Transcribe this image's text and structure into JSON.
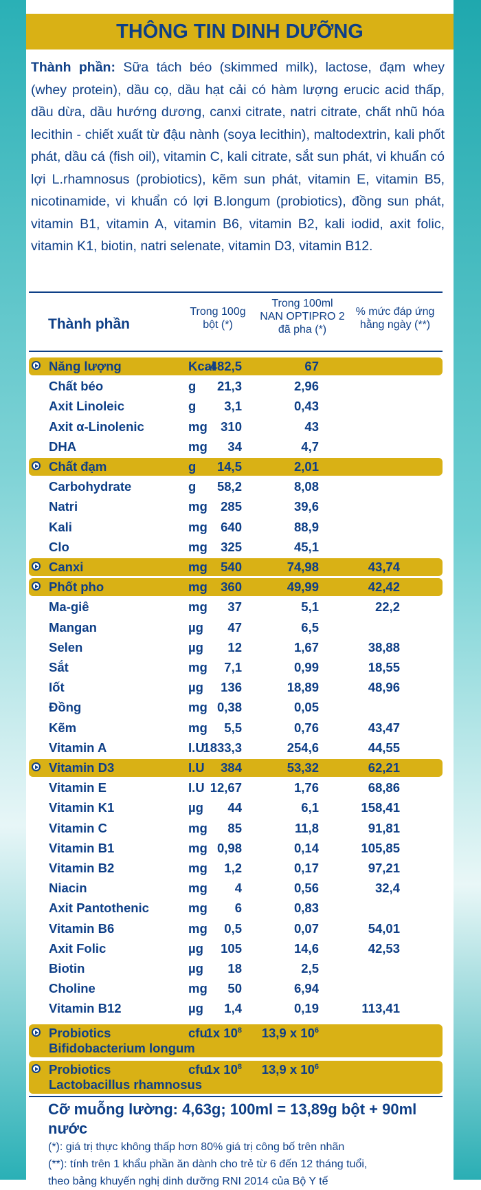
{
  "title": "THÔNG TIN DINH DƯỠNG",
  "ingredients": {
    "label": "Thành phần:",
    "text": "Sữa tách béo (skimmed milk), lactose, đạm whey (whey protein), dầu cọ, dầu hạt cải có hàm lượng erucic acid thấp, dầu dừa, dầu hướng dương, canxi citrate, natri citrate, chất nhũ hóa lecithin - chiết xuất từ đậu nành (soya lecithin), maltodextrin, kali phốt phát, dầu cá (fish oil), vitamin C, kali citrate, sắt sun phát, vi khuẩn có lợi L.rhamnosus (probiotics), kẽm sun phát, vitamin E, vitamin B5, nicotinamide, vi khuẩn có lợi B.longum (probiotics), đồng sun phát, vitamin B1, vitamin A, vitamin B6, vitamin B2, kali iodid, axit folic, vitamin K1, biotin, natri selenate, vitamin D3, vitamin B12."
  },
  "table_header": {
    "name": "Thành phần",
    "col_100g_line1": "Trong 100g",
    "col_100g_line2": "bột (*)",
    "col_100ml_line1": "Trong 100ml",
    "col_100ml_line2": "NAN OPTIPRO 2",
    "col_100ml_line3": "đã pha (*)",
    "col_pct_line1": "% mức đáp ứng",
    "col_pct_line2": "hằng ngày (**)"
  },
  "rows": [
    {
      "name": "Năng lượng",
      "unit": "Kcal",
      "v100g": "482,5",
      "v100ml": "67",
      "pct": ""
    },
    {
      "name": "Chất béo",
      "unit": "g",
      "v100g": "21,3",
      "v100ml": "2,96",
      "pct": ""
    },
    {
      "name": "Axit Linoleic",
      "unit": "g",
      "v100g": "3,1",
      "v100ml": "0,43",
      "pct": ""
    },
    {
      "name": "Axit α-Linolenic",
      "unit": "mg",
      "v100g": "310",
      "v100ml": "43",
      "pct": ""
    },
    {
      "name": "DHA",
      "unit": "mg",
      "v100g": "34",
      "v100ml": "4,7",
      "pct": ""
    },
    {
      "name": "Chất đạm",
      "unit": "g",
      "v100g": "14,5",
      "v100ml": "2,01",
      "pct": ""
    },
    {
      "name": "Carbohydrate",
      "unit": "g",
      "v100g": "58,2",
      "v100ml": "8,08",
      "pct": ""
    },
    {
      "name": "Natri",
      "unit": "mg",
      "v100g": "285",
      "v100ml": "39,6",
      "pct": ""
    },
    {
      "name": "Kali",
      "unit": "mg",
      "v100g": "640",
      "v100ml": "88,9",
      "pct": ""
    },
    {
      "name": "Clo",
      "unit": "mg",
      "v100g": "325",
      "v100ml": "45,1",
      "pct": ""
    },
    {
      "name": "Canxi",
      "unit": "mg",
      "v100g": "540",
      "v100ml": "74,98",
      "pct": "43,74"
    },
    {
      "name": "Phốt pho",
      "unit": "mg",
      "v100g": "360",
      "v100ml": "49,99",
      "pct": "42,42"
    },
    {
      "name": "Ma-giê",
      "unit": "mg",
      "v100g": "37",
      "v100ml": "5,1",
      "pct": "22,2"
    },
    {
      "name": "Mangan",
      "unit": "µg",
      "v100g": "47",
      "v100ml": "6,5",
      "pct": ""
    },
    {
      "name": "Selen",
      "unit": "µg",
      "v100g": "12",
      "v100ml": "1,67",
      "pct": "38,88"
    },
    {
      "name": "Sắt",
      "unit": "mg",
      "v100g": "7,1",
      "v100ml": "0,99",
      "pct": "18,55"
    },
    {
      "name": "Iốt",
      "unit": "µg",
      "v100g": "136",
      "v100ml": "18,89",
      "pct": "48,96"
    },
    {
      "name": "Đồng",
      "unit": "mg",
      "v100g": "0,38",
      "v100ml": "0,05",
      "pct": ""
    },
    {
      "name": "Kẽm",
      "unit": "mg",
      "v100g": "5,5",
      "v100ml": "0,76",
      "pct": "43,47"
    },
    {
      "name": "Vitamin A",
      "unit": "I.U",
      "v100g": "1833,3",
      "v100ml": "254,6",
      "pct": "44,55"
    },
    {
      "name": "Vitamin D3",
      "unit": "I.U",
      "v100g": "384",
      "v100ml": "53,32",
      "pct": "62,21"
    },
    {
      "name": "Vitamin E",
      "unit": "I.U",
      "v100g": "12,67",
      "v100ml": "1,76",
      "pct": "68,86"
    },
    {
      "name": "Vitamin K1",
      "unit": "µg",
      "v100g": "44",
      "v100ml": "6,1",
      "pct": "158,41"
    },
    {
      "name": "Vitamin C",
      "unit": "mg",
      "v100g": "85",
      "v100ml": "11,8",
      "pct": "91,81"
    },
    {
      "name": "Vitamin B1",
      "unit": "mg",
      "v100g": "0,98",
      "v100ml": "0,14",
      "pct": "105,85"
    },
    {
      "name": "Vitamin B2",
      "unit": "mg",
      "v100g": "1,2",
      "v100ml": "0,17",
      "pct": "97,21"
    },
    {
      "name": "Niacin",
      "unit": "mg",
      "v100g": "4",
      "v100ml": "0,56",
      "pct": "32,4"
    },
    {
      "name": "Axit Pantothenic",
      "unit": "mg",
      "v100g": "6",
      "v100ml": "0,83",
      "pct": ""
    },
    {
      "name": "Vitamin B6",
      "unit": "mg",
      "v100g": "0,5",
      "v100ml": "0,07",
      "pct": "54,01"
    },
    {
      "name": "Axit Folic",
      "unit": "µg",
      "v100g": "105",
      "v100ml": "14,6",
      "pct": "42,53"
    },
    {
      "name": "Biotin",
      "unit": "µg",
      "v100g": "18",
      "v100ml": "2,5",
      "pct": ""
    },
    {
      "name": "Choline",
      "unit": "mg",
      "v100g": "50",
      "v100ml": "6,94",
      "pct": ""
    },
    {
      "name": "Vitamin B12",
      "unit": "µg",
      "v100g": "1,4",
      "v100ml": "0,19",
      "pct": "113,41"
    }
  ],
  "probiotics": [
    {
      "name_line1": "Probiotics",
      "name_line2": "Bifidobacterium longum",
      "unit": "cfu",
      "v100g_base": "1x 10",
      "v100g_exp": "8",
      "v100ml_base": "13,9 x 10",
      "v100ml_exp": "6"
    },
    {
      "name_line1": "Probiotics",
      "name_line2": "Lactobacillus rhamnosus",
      "unit": "cfu",
      "v100g_base": "1x 10",
      "v100g_exp": "8",
      "v100ml_base": "13,9 x 10",
      "v100ml_exp": "6"
    }
  ],
  "footer": {
    "serving": "Cỡ muỗng lường: 4,63g; 100ml = 13,89g bột + 90ml nước",
    "note1": "(*): giá trị thực không thấp hơn 80% giá trị công bố trên nhãn",
    "note2": "(**): tính trên 1 khẩu phần ăn dành cho trẻ từ 6 đến 12 tháng tuổi,",
    "note3": "theo bảng khuyến nghị dinh dưỡng RNI 2014 của Bộ Y tế"
  },
  "colors": {
    "accent": "#d9b115",
    "text": "#0e3f87",
    "teal": "#2ab0b6"
  }
}
